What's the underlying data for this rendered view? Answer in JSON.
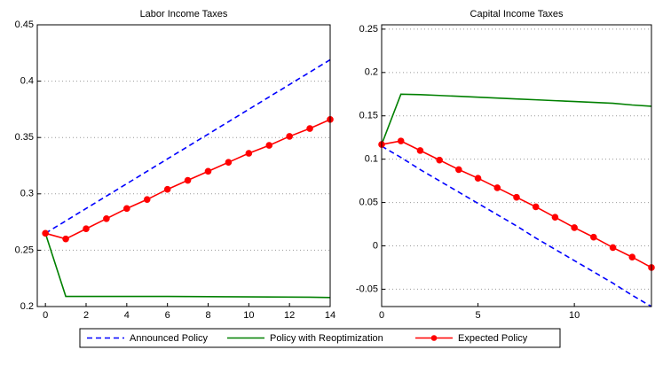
{
  "chart_data": [
    {
      "type": "line",
      "title": "Labor Income Taxes",
      "x": [
        0,
        1,
        2,
        3,
        4,
        5,
        6,
        7,
        8,
        9,
        10,
        11,
        12,
        13,
        14
      ],
      "xlim": [
        -0.4,
        14
      ],
      "xticks": [
        0,
        2,
        4,
        6,
        8,
        10,
        12,
        14
      ],
      "ylim": [
        0.2,
        0.45
      ],
      "yticks": [
        0.2,
        0.25,
        0.3,
        0.35,
        0.4,
        0.45
      ],
      "grid": "y",
      "series": [
        {
          "name": "Announced Policy",
          "color": "#0000ff",
          "style": "dashed",
          "values": [
            0.265,
            0.276,
            0.287,
            0.298,
            0.309,
            0.32,
            0.331,
            0.342,
            0.353,
            0.364,
            0.375,
            0.386,
            0.397,
            0.408,
            0.419
          ]
        },
        {
          "name": "Policy with Reoptimization",
          "color": "#008000",
          "style": "solid",
          "values": [
            0.265,
            0.209,
            0.209,
            0.209,
            0.209,
            0.209,
            0.209,
            0.2089,
            0.2088,
            0.2087,
            0.2086,
            0.2085,
            0.2084,
            0.2083,
            0.208
          ]
        },
        {
          "name": "Expected Policy",
          "color": "#ff0000",
          "style": "markers",
          "values": [
            0.265,
            0.26,
            0.269,
            0.278,
            0.287,
            0.295,
            0.304,
            0.312,
            0.32,
            0.328,
            0.336,
            0.343,
            0.351,
            0.358,
            0.366
          ]
        }
      ]
    },
    {
      "type": "line",
      "title": "Capital Income Taxes",
      "x": [
        0,
        1,
        2,
        3,
        4,
        5,
        6,
        7,
        8,
        9,
        10,
        11,
        12,
        13,
        14
      ],
      "xlim": [
        0,
        14
      ],
      "xticks": [
        0,
        5,
        10
      ],
      "ylim": [
        -0.07,
        0.255
      ],
      "yticks": [
        -0.05,
        0,
        0.05,
        0.1,
        0.15,
        0.2,
        0.25
      ],
      "grid": "y",
      "series": [
        {
          "color": "#0000ff",
          "style": "dashed",
          "values": [
            0.115,
            0.102,
            0.088,
            0.075,
            0.062,
            0.049,
            0.036,
            0.023,
            0.009,
            -0.004,
            -0.017,
            -0.03,
            -0.043,
            -0.057,
            -0.07
          ]
        },
        {
          "color": "#008000",
          "style": "solid",
          "values": [
            0.117,
            0.175,
            0.1745,
            0.1735,
            0.1725,
            0.1715,
            0.1705,
            0.1695,
            0.1685,
            0.1675,
            0.1665,
            0.1655,
            0.1645,
            0.1625,
            0.161
          ]
        },
        {
          "color": "#ff0000",
          "style": "markers",
          "values": [
            0.117,
            0.121,
            0.11,
            0.099,
            0.088,
            0.078,
            0.067,
            0.056,
            0.045,
            0.033,
            0.021,
            0.01,
            -0.002,
            -0.013,
            -0.025
          ]
        }
      ]
    }
  ]
}
